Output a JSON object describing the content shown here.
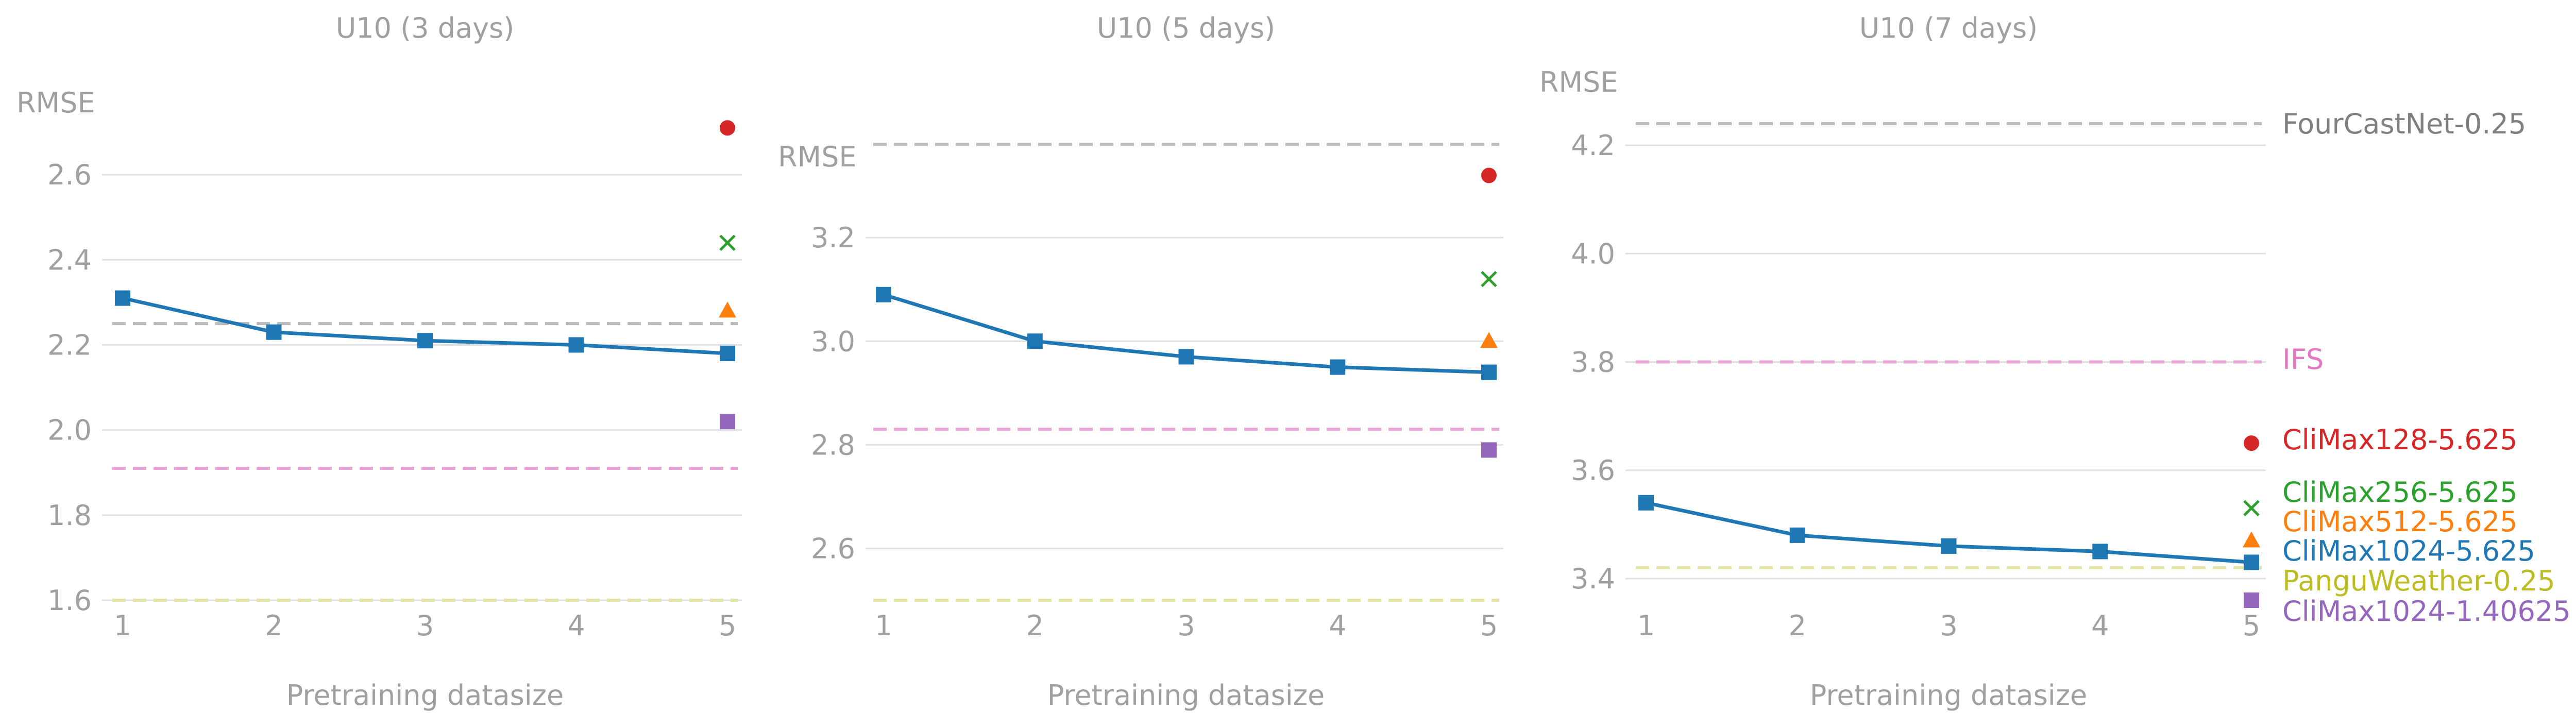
{
  "chart_data": [
    {
      "type": "line",
      "title": "U10 (3 days)",
      "xlabel": "Pretraining datasize",
      "ylabel": "RMSE",
      "x": [
        1,
        2,
        3,
        4,
        5
      ],
      "x_ticks": [
        "1",
        "2",
        "3",
        "4",
        "5"
      ],
      "ylim": [
        1.6,
        2.72
      ],
      "y_ticks": [
        "1.6",
        "1.8",
        "2.0",
        "2.2",
        "2.4",
        "2.6"
      ],
      "grid": "horizontal",
      "series": [
        {
          "values": [
            2.31,
            2.23,
            2.21,
            2.2,
            2.18
          ],
          "color": "#1f77b4",
          "marker": "square"
        }
      ],
      "baselines": [
        {
          "name": "FourCastNet-0.25",
          "value": 2.25,
          "color": "#bbbbbb"
        },
        {
          "name": "IFS",
          "value": 1.91,
          "color": "#e9a6d6"
        },
        {
          "name": "PanguWeather-0.25",
          "value": 1.6,
          "color": "#e4e6a8"
        }
      ],
      "points": [
        {
          "name": "CliMax128-5.625",
          "x": 5,
          "value": 2.71,
          "color": "#d62728",
          "marker": "circle"
        },
        {
          "name": "CliMax256-5.625",
          "x": 5,
          "value": 2.44,
          "color": "#2ca02c",
          "marker": "x"
        },
        {
          "name": "CliMax512-5.625",
          "x": 5,
          "value": 2.28,
          "color": "#ff7f0e",
          "marker": "triangle"
        },
        {
          "name": "CliMax1024-1.40625",
          "x": 5,
          "value": 2.02,
          "color": "#9467bd",
          "marker": "square"
        }
      ]
    },
    {
      "type": "line",
      "title": "U10 (5 days)",
      "xlabel": "Pretraining datasize",
      "ylabel": "RMSE",
      "x": [
        1,
        2,
        3,
        4,
        5
      ],
      "x_ticks": [
        "1",
        "2",
        "3",
        "4",
        "5"
      ],
      "ylim": [
        2.5,
        3.42
      ],
      "y_ticks": [
        "2.6",
        "2.8",
        "3.0",
        "3.2"
      ],
      "grid": "horizontal",
      "series": [
        {
          "values": [
            3.09,
            3.0,
            2.97,
            2.95,
            2.94
          ],
          "color": "#1f77b4",
          "marker": "square"
        }
      ],
      "baselines": [
        {
          "name": "FourCastNet-0.25",
          "value": 3.38,
          "color": "#bbbbbb"
        },
        {
          "name": "IFS",
          "value": 2.83,
          "color": "#e9a6d6"
        },
        {
          "name": "PanguWeather-0.25",
          "value": 2.5,
          "color": "#e4e6a8"
        }
      ],
      "points": [
        {
          "name": "CliMax128-5.625",
          "x": 5,
          "value": 3.32,
          "color": "#d62728",
          "marker": "circle"
        },
        {
          "name": "CliMax256-5.625",
          "x": 5,
          "value": 3.12,
          "color": "#2ca02c",
          "marker": "x"
        },
        {
          "name": "CliMax512-5.625",
          "x": 5,
          "value": 3.0,
          "color": "#ff7f0e",
          "marker": "triangle"
        },
        {
          "name": "CliMax1024-1.40625",
          "x": 5,
          "value": 2.79,
          "color": "#9467bd",
          "marker": "square"
        }
      ]
    },
    {
      "type": "line",
      "title": "U10 (7 days)",
      "xlabel": "Pretraining datasize",
      "ylabel": "RMSE",
      "x": [
        1,
        2,
        3,
        4,
        5
      ],
      "x_ticks": [
        "1",
        "2",
        "3",
        "4",
        "5"
      ],
      "ylim": [
        3.36,
        4.24
      ],
      "y_ticks": [
        "3.4",
        "3.6",
        "3.8",
        "4.0",
        "4.2"
      ],
      "grid": "horizontal",
      "series": [
        {
          "values": [
            3.54,
            3.48,
            3.46,
            3.45,
            3.43
          ],
          "color": "#1f77b4",
          "marker": "square"
        }
      ],
      "baselines": [
        {
          "name": "FourCastNet-0.25",
          "value": 4.24,
          "color": "#bbbbbb"
        },
        {
          "name": "IFS",
          "value": 3.8,
          "color": "#e9a6d6"
        },
        {
          "name": "PanguWeather-0.25",
          "value": 3.42,
          "color": "#e4e6a8"
        }
      ],
      "points": [
        {
          "name": "CliMax128-5.625",
          "x": 5,
          "value": 3.65,
          "color": "#d62728",
          "marker": "circle"
        },
        {
          "name": "CliMax256-5.625",
          "x": 5,
          "value": 3.53,
          "color": "#2ca02c",
          "marker": "x"
        },
        {
          "name": "CliMax512-5.625",
          "x": 5,
          "value": 3.47,
          "color": "#ff7f0e",
          "marker": "triangle"
        },
        {
          "name": "CliMax1024-1.40625",
          "x": 5,
          "value": 3.36,
          "color": "#9467bd",
          "marker": "square"
        }
      ]
    }
  ],
  "legend": {
    "placement": "right",
    "entries": [
      {
        "label": "FourCastNet-0.25",
        "color": "#808080"
      },
      {
        "label": "IFS",
        "color": "#e377c2"
      },
      {
        "label": "CliMax128-5.625",
        "color": "#d62728"
      },
      {
        "label": "CliMax256-5.625",
        "color": "#2ca02c"
      },
      {
        "label": "CliMax512-5.625",
        "color": "#ff7f0e"
      },
      {
        "label": "CliMax1024-5.625",
        "color": "#1f77b4"
      },
      {
        "label": "PanguWeather-0.25",
        "color": "#bcbd22"
      },
      {
        "label": "CliMax1024-1.40625",
        "color": "#9467bd"
      }
    ]
  },
  "colors": {
    "text": "#a0a0a0",
    "grid": "#e0e0e0"
  }
}
